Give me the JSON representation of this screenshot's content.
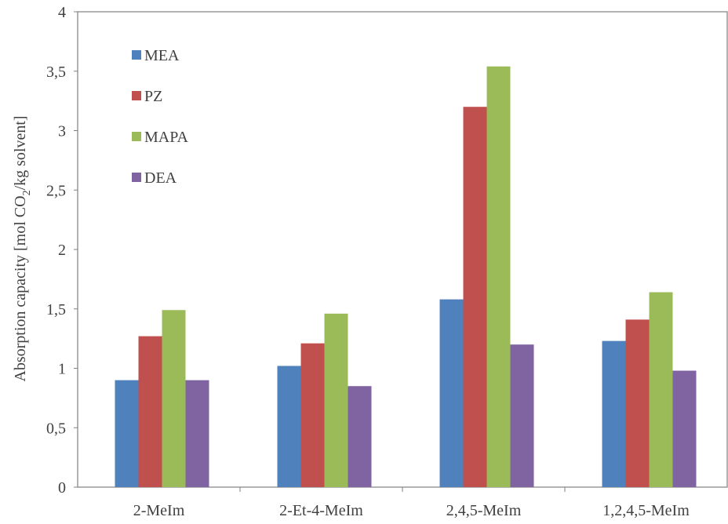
{
  "chart_data": {
    "type": "bar",
    "categories": [
      "2-MeIm",
      "2-Et-4-MeIm",
      "2,4,5-MeIm",
      "1,2,4,5-MeIm"
    ],
    "series": [
      {
        "name": "MEA",
        "color": "#4f81bd",
        "values": [
          0.9,
          1.02,
          1.58,
          1.23
        ]
      },
      {
        "name": "PZ",
        "color": "#c0504d",
        "values": [
          1.27,
          1.21,
          3.2,
          1.41
        ]
      },
      {
        "name": "MAPA",
        "color": "#9bbb59",
        "values": [
          1.49,
          1.46,
          3.54,
          1.64
        ]
      },
      {
        "name": "DEA",
        "color": "#8064a2",
        "values": [
          0.9,
          0.85,
          1.2,
          0.98
        ]
      }
    ],
    "ylabel": {
      "prefix": "Absorption capacity [mol CO",
      "subscript": "2",
      "suffix": "/kg solvent]"
    },
    "ylim": [
      0,
      4
    ],
    "yticks": [
      {
        "value": 0,
        "label": "0"
      },
      {
        "value": 0.5,
        "label": "0,5"
      },
      {
        "value": 1,
        "label": "1"
      },
      {
        "value": 1.5,
        "label": "1,5"
      },
      {
        "value": 2,
        "label": "2"
      },
      {
        "value": 2.5,
        "label": "2,5"
      },
      {
        "value": 3,
        "label": "3"
      },
      {
        "value": 3.5,
        "label": "3,5"
      },
      {
        "value": 4,
        "label": "4"
      }
    ],
    "grid": false,
    "legend_position": "top-left"
  }
}
